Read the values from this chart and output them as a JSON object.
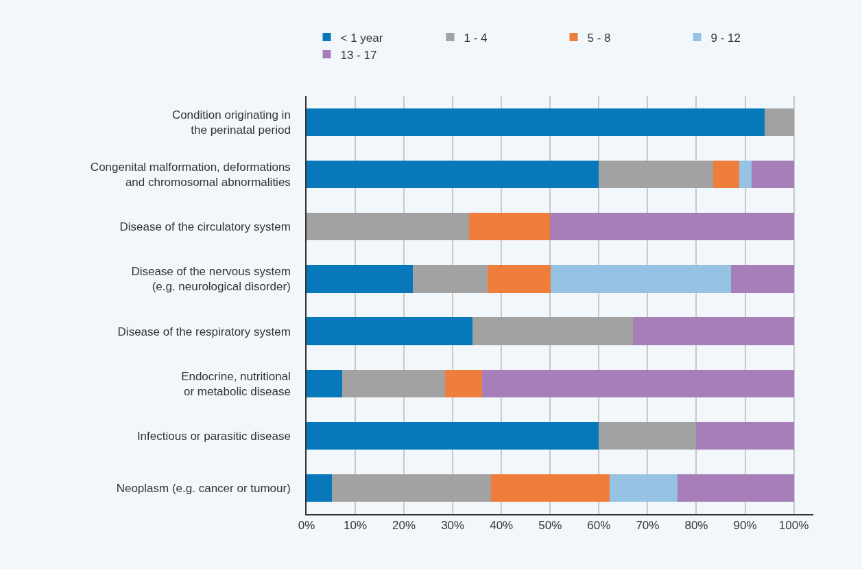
{
  "chart_data": {
    "type": "bar",
    "orientation": "horizontal",
    "stacked": true,
    "categories": [
      "Condition originating in\nthe perinatal period",
      "Congenital malformation, deformations\nand chromosomal abnormalities",
      "Disease of the circulatory system",
      "Disease of the nervous system\n(e.g. neurological disorder)",
      "Disease of the respiratory system",
      "Endocrine, nutritional\nor metabolic disease",
      "Infectious or parasitic disease",
      "Neoplasm (e.g. cancer or tumour)"
    ],
    "series": [
      {
        "name": "< 1 year",
        "color": "#0779bb",
        "values": [
          94,
          60,
          0,
          21.8,
          34,
          7.3,
          60,
          5.2
        ]
      },
      {
        "name": "1 - 4",
        "color": "#a2a2a2",
        "values": [
          6,
          23.4,
          33.3,
          15.3,
          33,
          21.1,
          20,
          32.6
        ]
      },
      {
        "name": "5 - 8",
        "color": "#ef7d3b",
        "values": [
          0,
          5.4,
          16.7,
          13,
          0,
          7.6,
          0,
          24.4
        ]
      },
      {
        "name": "9 - 12",
        "color": "#96c3e4",
        "values": [
          0,
          2.6,
          0,
          37,
          0,
          0,
          0,
          13.9
        ]
      },
      {
        "name": "13 - 17",
        "color": "#a67fb9",
        "values": [
          0,
          8.6,
          50,
          13,
          33,
          64,
          20,
          23.9
        ]
      }
    ],
    "xlim": [
      0,
      104
    ],
    "xticks": [
      {
        "value": 0,
        "label": "0%"
      },
      {
        "value": 10,
        "label": "10%"
      },
      {
        "value": 20,
        "label": "20%"
      },
      {
        "value": 30,
        "label": "30%"
      },
      {
        "value": 40,
        "label": "40%"
      },
      {
        "value": 50,
        "label": "50%"
      },
      {
        "value": 60,
        "label": "60%"
      },
      {
        "value": 70,
        "label": "70%"
      },
      {
        "value": 80,
        "label": "80%"
      },
      {
        "value": 90,
        "label": "90%"
      },
      {
        "value": 100,
        "label": "100%"
      }
    ],
    "grid": "x",
    "legend": "top"
  }
}
